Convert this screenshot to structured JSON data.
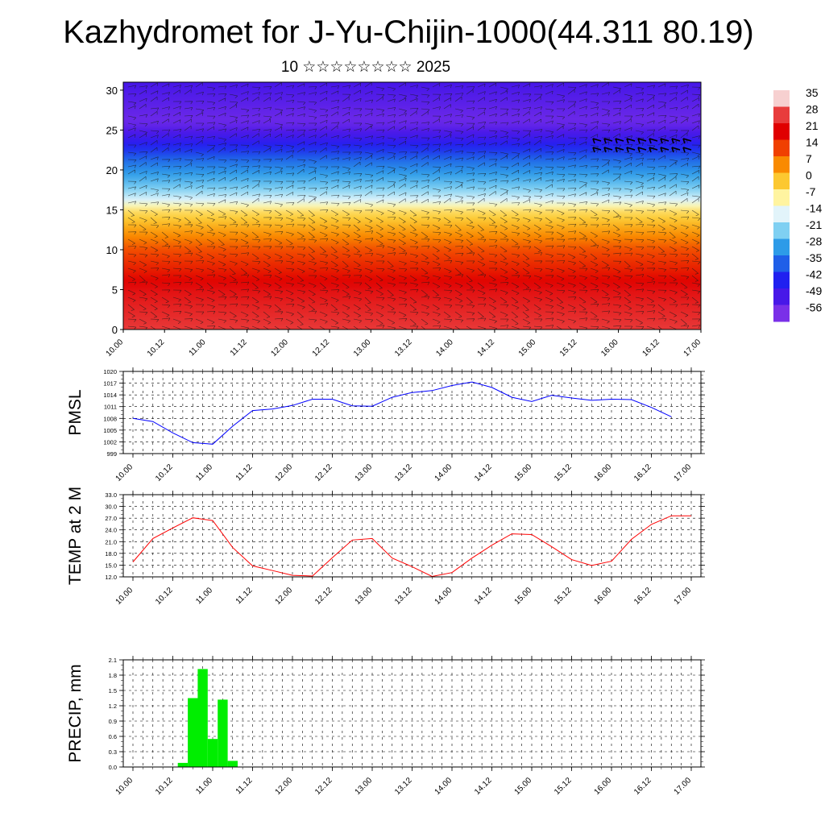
{
  "title": "Kazhydromet for J-Yu-Chijin-1000(44.311 80.19)",
  "subtitle": "10 ☆☆☆☆☆☆☆☆ 2025",
  "chart_data": [
    {
      "type": "heatmap",
      "description_role": "vertical cross-section, filled temperature contours with wind barbs",
      "x_ticks": [
        "10.00",
        "10.12",
        "11.00",
        "11.12",
        "12.00",
        "12.12",
        "13.00",
        "13.12",
        "14.00",
        "14.12",
        "15.00",
        "15.12",
        "16.00",
        "16.12",
        "17.00"
      ],
      "y_ticks": [
        0,
        5,
        10,
        15,
        20,
        25,
        30
      ],
      "ylim": [
        0,
        31
      ],
      "colorbar_labels": [
        "35",
        "28",
        "21",
        "14",
        "7",
        "0",
        "-7",
        "-14",
        "-21",
        "-28",
        "-35",
        "-42",
        "-49",
        "-56"
      ],
      "colorbar_colors": [
        "#f7d0d0",
        "#e83c3c",
        "#e00000",
        "#f04000",
        "#f98a00",
        "#fcc830",
        "#fff4a0",
        "#e2f4fa",
        "#7fd0f2",
        "#2d9be8",
        "#1f5fe8",
        "#2020f0",
        "#4818e8",
        "#7a30e8"
      ],
      "temperature_by_height": [
        {
          "h": 0,
          "t": 30
        },
        {
          "h": 5,
          "t": 25
        },
        {
          "h": 10,
          "t": 14
        },
        {
          "h": 15,
          "t": -4
        },
        {
          "h": 16,
          "t": -14
        },
        {
          "h": 18,
          "t": -24
        },
        {
          "h": 21,
          "t": -35
        },
        {
          "h": 24,
          "t": -50
        },
        {
          "h": 26,
          "t": -58
        },
        {
          "h": 31,
          "t": -52
        }
      ]
    },
    {
      "type": "line",
      "ylabel": "PMSL",
      "x_ticks": [
        "10.00",
        "10.12",
        "11.00",
        "11.12",
        "12.00",
        "12.12",
        "13.00",
        "13.12",
        "14.00",
        "14.12",
        "15.00",
        "15.12",
        "16.00",
        "16.12",
        "17.00"
      ],
      "y_ticks": [
        "999",
        "1002",
        "1005",
        "1008",
        "1011",
        "1014",
        "1017",
        "1020"
      ],
      "ylim": [
        999,
        1020
      ],
      "xlim": [
        0,
        28
      ],
      "series": [
        {
          "color": "#0000ff",
          "x": [
            0,
            1,
            2,
            3,
            4,
            5,
            6,
            7,
            8,
            9,
            10,
            11,
            12,
            13,
            14,
            15,
            16,
            17,
            18,
            19,
            20,
            21,
            22,
            23,
            24,
            25,
            26,
            27
          ],
          "values": [
            1008,
            1007.2,
            1004.3,
            1001.8,
            1001.4,
            1006,
            1010,
            1010.4,
            1011.3,
            1012.9,
            1012.9,
            1011.2,
            1011.1,
            1013.4,
            1014.6,
            1015.1,
            1016.4,
            1017.3,
            1015.9,
            1013.4,
            1012.3,
            1013.9,
            1013.2,
            1012.6,
            1012.9,
            1012.8,
            1010.8,
            1008.4
          ]
        }
      ]
    },
    {
      "type": "line",
      "ylabel": "TEMP at 2 M",
      "x_ticks": [
        "10.00",
        "10.12",
        "11.00",
        "11.12",
        "12.00",
        "12.12",
        "13.00",
        "13.12",
        "14.00",
        "14.12",
        "15.00",
        "15.12",
        "16.00",
        "16.12",
        "17.00"
      ],
      "y_ticks": [
        "12.0",
        "15.0",
        "18.0",
        "21.0",
        "24.0",
        "27.0",
        "30.0",
        "33.0"
      ],
      "ylim": [
        12,
        33
      ],
      "xlim": [
        0,
        28
      ],
      "series": [
        {
          "color": "#ff0000",
          "x": [
            0,
            1,
            2,
            3,
            4,
            5,
            6,
            7,
            8,
            9,
            10,
            11,
            12,
            13,
            14,
            15,
            16,
            17,
            18,
            19,
            20,
            21,
            22,
            23,
            24,
            25,
            26,
            27,
            28
          ],
          "values": [
            15.8,
            21.8,
            24.5,
            27.1,
            26.4,
            19.5,
            14.8,
            13.6,
            12.4,
            12.2,
            16.9,
            21.4,
            21.8,
            16.8,
            14.6,
            12.1,
            13.1,
            16.8,
            20.1,
            23.0,
            22.8,
            19.7,
            16.4,
            14.9,
            16.0,
            21.6,
            25.4,
            27.6,
            27.6
          ]
        }
      ]
    },
    {
      "type": "bar",
      "ylabel": "PRECIP, mm",
      "x_ticks": [
        "10.00",
        "10.12",
        "11.00",
        "11.12",
        "12.00",
        "12.12",
        "13.00",
        "13.12",
        "14.00",
        "14.12",
        "15.00",
        "15.12",
        "16.00",
        "16.12",
        "17.00"
      ],
      "y_ticks": [
        "0.0",
        "0.3",
        "0.6",
        "0.9",
        "1.2",
        "1.5",
        "1.8",
        "2.1"
      ],
      "ylim": [
        0,
        2.1
      ],
      "xlim": [
        0,
        28
      ],
      "bar_color": "#00ee00",
      "x": [
        2.5,
        3.0,
        3.5,
        4.0,
        4.5,
        5.0
      ],
      "values": [
        0.08,
        1.35,
        1.92,
        0.55,
        1.32,
        0.12
      ]
    }
  ]
}
